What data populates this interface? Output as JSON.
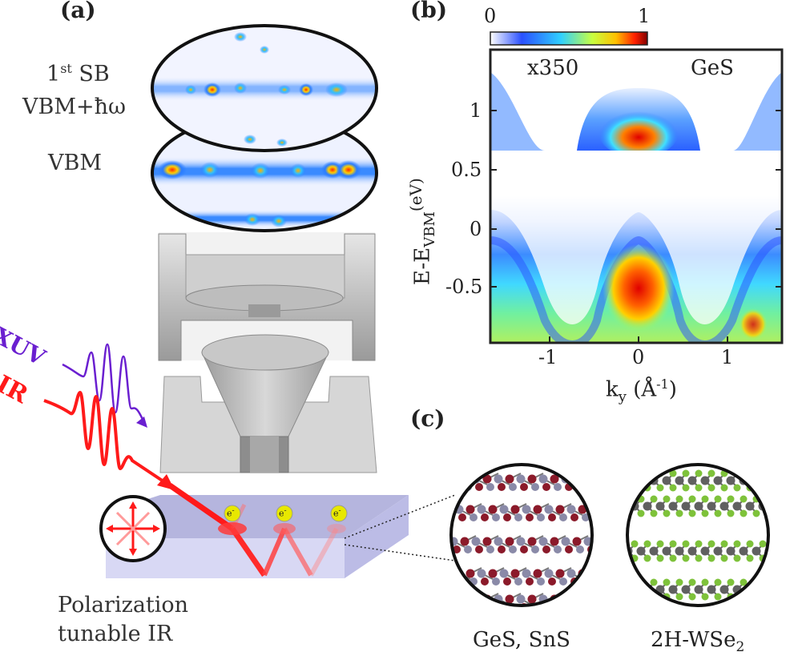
{
  "panels": {
    "a": {
      "label": "(a)",
      "sideband_label_main": "1",
      "sideband_label_sup": "st",
      "sideband_label_rest": " SB",
      "vbm_hw_label": "VBM+ħω",
      "vbm_label": "VBM",
      "xuv_label": "XUV",
      "ir_label": "IR",
      "electron_label": "e",
      "electron_sup": "-",
      "polarization_line1": "Polarization",
      "polarization_line2": "tunable IR"
    },
    "b": {
      "label": "(b)",
      "colorbar_min": "0",
      "colorbar_max": "1",
      "scale_label": "x350",
      "material_label": "GeS",
      "ylabel_main": "E-E",
      "ylabel_sub": "VBM",
      "ylabel_unit": "(eV)",
      "xlabel_main": "k",
      "xlabel_sub": "y",
      "xlabel_unit": " (Å",
      "xlabel_sup": "-1",
      "xlabel_close": ")",
      "yticks": [
        "1",
        "0.5",
        "0",
        "-0.5"
      ],
      "xticks": [
        "-1",
        "0",
        "1"
      ]
    },
    "c": {
      "label": "(c)",
      "left_caption": "GeS, SnS",
      "right_caption_main": "2H-WSe",
      "right_caption_sub": "2"
    }
  },
  "colors": {
    "xuv": "#6a1fd0",
    "ir": "#ff1a1a",
    "chalcogen": "#8b1a2a",
    "metal": "#8a8aa8",
    "se": "#7ec23a",
    "w": "#606060",
    "sample": "#c8c8ee"
  }
}
